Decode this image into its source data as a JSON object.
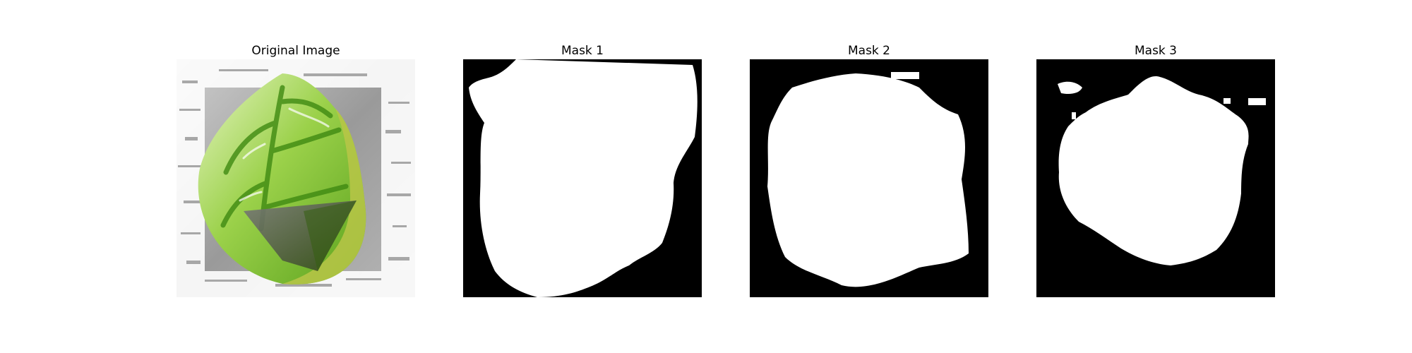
{
  "figure": {
    "panels": [
      {
        "title": "Original Image",
        "kind": "photo"
      },
      {
        "title": "Mask 1",
        "kind": "mask"
      },
      {
        "title": "Mask 2",
        "kind": "mask"
      },
      {
        "title": "Mask 3",
        "kind": "mask"
      }
    ]
  },
  "colors": {
    "background": "#ffffff",
    "mask_background": "#000000",
    "mask_foreground": "#ffffff",
    "leaf_light": "#dff0b0",
    "leaf_mid": "#9bd14a",
    "leaf_dark": "#3f8a12",
    "leaf_yellow": "#b9c548",
    "surface_gray": "#9a9a9a",
    "shadow_gray": "#5c5c5c"
  }
}
